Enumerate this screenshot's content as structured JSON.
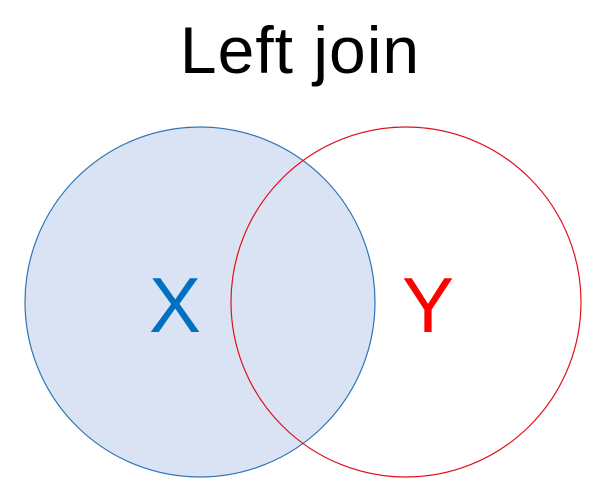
{
  "title": "Left join",
  "sets": {
    "left": {
      "label": "X",
      "stroke": "#2E75B6",
      "fill": "#DAE3F3",
      "text_color": "#0070C0",
      "included": true
    },
    "right": {
      "label": "Y",
      "stroke": "#E0101B",
      "fill": "none",
      "text_color": "#FF0000",
      "included": false
    }
  }
}
